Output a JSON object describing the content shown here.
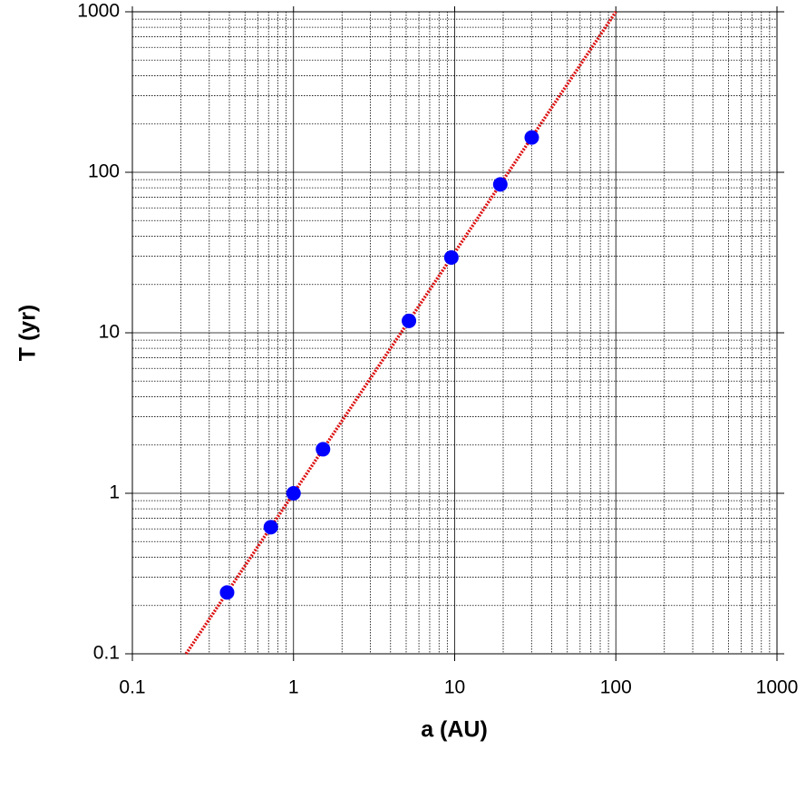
{
  "chart_data": {
    "type": "scatter",
    "xlabel": "a (AU)",
    "ylabel": "T (yr)",
    "xscale": "log",
    "yscale": "log",
    "xlim": [
      0.1,
      1000
    ],
    "ylim": [
      0.1,
      1000
    ],
    "xticks": [
      0.1,
      1,
      10,
      100,
      1000
    ],
    "yticks": [
      0.1,
      1,
      10,
      100,
      1000
    ],
    "xminor": [
      0.2,
      0.3,
      0.4,
      0.5,
      0.6,
      0.7,
      0.8,
      0.9,
      2,
      3,
      4,
      5,
      6,
      7,
      8,
      9,
      20,
      30,
      40,
      50,
      60,
      70,
      80,
      90,
      200,
      300,
      400,
      500,
      600,
      700,
      800,
      900
    ],
    "yminor": [
      0.2,
      0.3,
      0.4,
      0.5,
      0.6,
      0.7,
      0.8,
      0.9,
      2,
      3,
      4,
      5,
      6,
      7,
      8,
      9,
      20,
      30,
      40,
      50,
      60,
      70,
      80,
      90,
      200,
      300,
      400,
      500,
      600,
      700,
      800,
      900
    ],
    "grid": true,
    "series": [
      {
        "type": "line",
        "color": "#dd1111",
        "x": [
          0.2154,
          100
        ],
        "values": [
          0.1,
          1000
        ]
      },
      {
        "type": "scatter",
        "color": "#0000ff",
        "x": [
          0.387,
          0.723,
          1,
          1.524,
          5.203,
          9.537,
          19.19,
          30.07
        ],
        "values": [
          0.241,
          0.615,
          1,
          1.881,
          11.86,
          29.46,
          84.01,
          164.8
        ]
      }
    ]
  }
}
